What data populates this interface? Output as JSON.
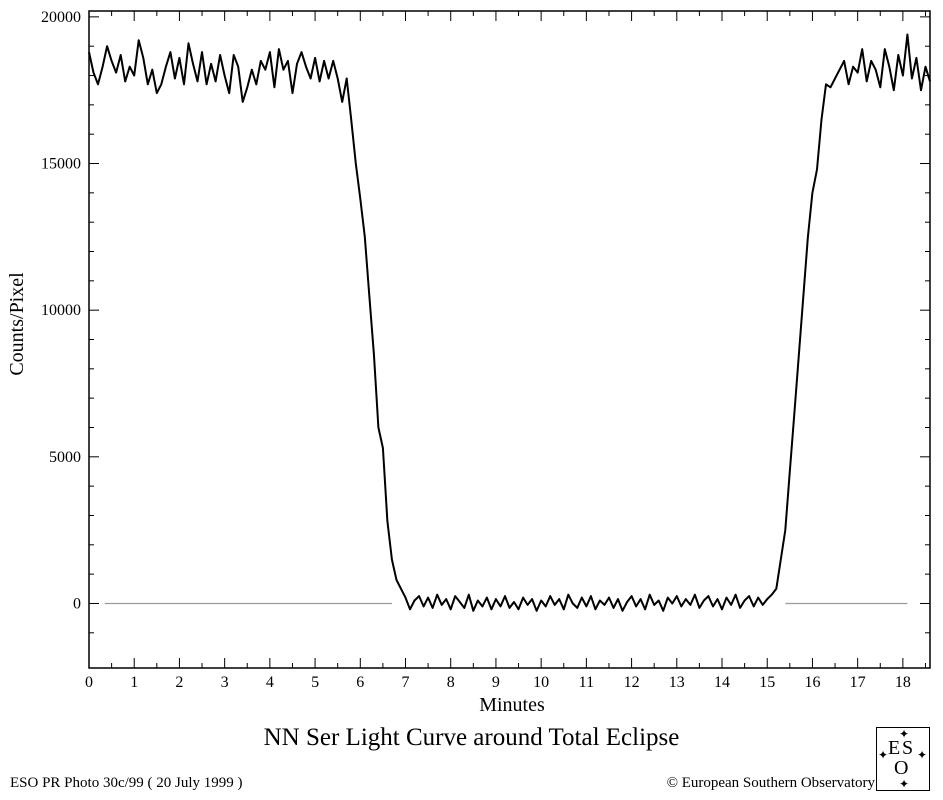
{
  "chart_data": {
    "type": "line",
    "title": "NN Ser Light Curve around Total Eclipse",
    "xlabel": "Minutes",
    "ylabel": "Counts/Pixel",
    "xlim": [
      0,
      18.6
    ],
    "ylim": [
      -2200,
      20200
    ],
    "xticks": [
      0,
      1,
      2,
      3,
      4,
      5,
      6,
      7,
      8,
      9,
      10,
      11,
      12,
      13,
      14,
      15,
      16,
      17,
      18
    ],
    "yticks": [
      0,
      5000,
      10000,
      15000,
      20000
    ],
    "xtick_labels": [
      "0",
      "1",
      "2",
      "3",
      "4",
      "5",
      "6",
      "7",
      "8",
      "9",
      "10",
      "11",
      "12",
      "13",
      "14",
      "15",
      "16",
      "17",
      "18"
    ],
    "ytick_labels": [
      "0",
      "5000",
      "10000",
      "15000",
      "20000"
    ],
    "grid": false,
    "series": [
      {
        "values": [
          [
            0.0,
            18800
          ],
          [
            0.1,
            18100
          ],
          [
            0.2,
            17700
          ],
          [
            0.3,
            18300
          ],
          [
            0.4,
            19000
          ],
          [
            0.5,
            18500
          ],
          [
            0.6,
            18100
          ],
          [
            0.7,
            18700
          ],
          [
            0.8,
            17800
          ],
          [
            0.9,
            18300
          ],
          [
            1.0,
            18000
          ],
          [
            1.1,
            19200
          ],
          [
            1.2,
            18600
          ],
          [
            1.3,
            17700
          ],
          [
            1.4,
            18200
          ],
          [
            1.5,
            17400
          ],
          [
            1.6,
            17700
          ],
          [
            1.7,
            18300
          ],
          [
            1.8,
            18800
          ],
          [
            1.9,
            17900
          ],
          [
            2.0,
            18600
          ],
          [
            2.1,
            17700
          ],
          [
            2.2,
            19100
          ],
          [
            2.3,
            18400
          ],
          [
            2.4,
            17800
          ],
          [
            2.5,
            18800
          ],
          [
            2.6,
            17700
          ],
          [
            2.7,
            18400
          ],
          [
            2.8,
            17800
          ],
          [
            2.9,
            18700
          ],
          [
            3.0,
            18000
          ],
          [
            3.1,
            17400
          ],
          [
            3.2,
            18700
          ],
          [
            3.3,
            18300
          ],
          [
            3.4,
            17100
          ],
          [
            3.5,
            17600
          ],
          [
            3.6,
            18200
          ],
          [
            3.7,
            17700
          ],
          [
            3.8,
            18500
          ],
          [
            3.9,
            18200
          ],
          [
            4.0,
            18800
          ],
          [
            4.1,
            17600
          ],
          [
            4.2,
            18900
          ],
          [
            4.3,
            18200
          ],
          [
            4.4,
            18500
          ],
          [
            4.5,
            17400
          ],
          [
            4.6,
            18400
          ],
          [
            4.7,
            18800
          ],
          [
            4.8,
            18300
          ],
          [
            4.9,
            17900
          ],
          [
            5.0,
            18600
          ],
          [
            5.1,
            17800
          ],
          [
            5.2,
            18500
          ],
          [
            5.3,
            17900
          ],
          [
            5.4,
            18500
          ],
          [
            5.5,
            17900
          ],
          [
            5.6,
            17100
          ],
          [
            5.7,
            17900
          ],
          [
            5.8,
            16500
          ],
          [
            5.9,
            15000
          ],
          [
            6.0,
            13800
          ],
          [
            6.1,
            12500
          ],
          [
            6.2,
            10500
          ],
          [
            6.3,
            8500
          ],
          [
            6.4,
            6000
          ],
          [
            6.5,
            5300
          ],
          [
            6.6,
            2800
          ],
          [
            6.7,
            1500
          ],
          [
            6.8,
            800
          ],
          [
            6.9,
            500
          ],
          [
            7.0,
            200
          ],
          [
            7.1,
            -200
          ],
          [
            7.2,
            100
          ],
          [
            7.3,
            250
          ],
          [
            7.4,
            -100
          ],
          [
            7.5,
            200
          ],
          [
            7.6,
            -150
          ],
          [
            7.7,
            300
          ],
          [
            7.8,
            -50
          ],
          [
            7.9,
            150
          ],
          [
            8.0,
            -200
          ],
          [
            8.1,
            250
          ],
          [
            8.2,
            50
          ],
          [
            8.3,
            -150
          ],
          [
            8.4,
            300
          ],
          [
            8.5,
            -250
          ],
          [
            8.6,
            100
          ],
          [
            8.7,
            -100
          ],
          [
            8.8,
            200
          ],
          [
            8.9,
            -200
          ],
          [
            9.0,
            150
          ],
          [
            9.1,
            -100
          ],
          [
            9.2,
            250
          ],
          [
            9.3,
            -150
          ],
          [
            9.4,
            50
          ],
          [
            9.5,
            -200
          ],
          [
            9.6,
            200
          ],
          [
            9.7,
            -50
          ],
          [
            9.8,
            150
          ],
          [
            9.9,
            -250
          ],
          [
            10.0,
            100
          ],
          [
            10.1,
            -100
          ],
          [
            10.2,
            250
          ],
          [
            10.3,
            -50
          ],
          [
            10.4,
            150
          ],
          [
            10.5,
            -200
          ],
          [
            10.6,
            300
          ],
          [
            10.7,
            0
          ],
          [
            10.8,
            -150
          ],
          [
            10.9,
            200
          ],
          [
            11.0,
            -100
          ],
          [
            11.1,
            250
          ],
          [
            11.2,
            -200
          ],
          [
            11.3,
            100
          ],
          [
            11.4,
            -50
          ],
          [
            11.5,
            200
          ],
          [
            11.6,
            -150
          ],
          [
            11.7,
            150
          ],
          [
            11.8,
            -250
          ],
          [
            11.9,
            50
          ],
          [
            12.0,
            250
          ],
          [
            12.1,
            -100
          ],
          [
            12.2,
            150
          ],
          [
            12.3,
            -200
          ],
          [
            12.4,
            300
          ],
          [
            12.5,
            -50
          ],
          [
            12.6,
            100
          ],
          [
            12.7,
            -250
          ],
          [
            12.8,
            200
          ],
          [
            12.9,
            0
          ],
          [
            13.0,
            250
          ],
          [
            13.1,
            -100
          ],
          [
            13.2,
            150
          ],
          [
            13.3,
            -50
          ],
          [
            13.4,
            300
          ],
          [
            13.5,
            -150
          ],
          [
            13.6,
            100
          ],
          [
            13.7,
            250
          ],
          [
            13.8,
            -100
          ],
          [
            13.9,
            150
          ],
          [
            14.0,
            -200
          ],
          [
            14.1,
            200
          ],
          [
            14.2,
            -50
          ],
          [
            14.3,
            300
          ],
          [
            14.4,
            -150
          ],
          [
            14.5,
            100
          ],
          [
            14.6,
            250
          ],
          [
            14.7,
            -100
          ],
          [
            14.8,
            200
          ],
          [
            14.9,
            -50
          ],
          [
            15.0,
            150
          ],
          [
            15.1,
            300
          ],
          [
            15.2,
            500
          ],
          [
            15.3,
            1500
          ],
          [
            15.4,
            2500
          ],
          [
            15.5,
            4500
          ],
          [
            15.6,
            6500
          ],
          [
            15.7,
            8500
          ],
          [
            15.8,
            10500
          ],
          [
            15.9,
            12500
          ],
          [
            16.0,
            14000
          ],
          [
            16.1,
            14800
          ],
          [
            16.2,
            16500
          ],
          [
            16.3,
            17700
          ],
          [
            16.4,
            17600
          ],
          [
            16.5,
            17900
          ],
          [
            16.6,
            18200
          ],
          [
            16.7,
            18500
          ],
          [
            16.8,
            17700
          ],
          [
            16.9,
            18300
          ],
          [
            17.0,
            18100
          ],
          [
            17.1,
            18900
          ],
          [
            17.2,
            17800
          ],
          [
            17.3,
            18500
          ],
          [
            17.4,
            18200
          ],
          [
            17.5,
            17600
          ],
          [
            17.6,
            18900
          ],
          [
            17.7,
            18300
          ],
          [
            17.8,
            17500
          ],
          [
            17.9,
            18700
          ],
          [
            18.0,
            18000
          ],
          [
            18.1,
            19400
          ],
          [
            18.2,
            17900
          ],
          [
            18.3,
            18600
          ],
          [
            18.4,
            17500
          ],
          [
            18.5,
            18300
          ],
          [
            18.6,
            17800
          ]
        ]
      }
    ],
    "reference_lines": [
      {
        "y": 0,
        "x": [
          0.35,
          6.7
        ],
        "color": "#9a9a9a"
      },
      {
        "y": 0,
        "x": [
          15.4,
          18.1
        ],
        "color": "#9a9a9a"
      }
    ]
  },
  "footer": {
    "left": "ESO PR Photo 30c/99 ( 20 July 1999 )",
    "right": "© European Southern Observatory",
    "logo_text": "ESO"
  }
}
